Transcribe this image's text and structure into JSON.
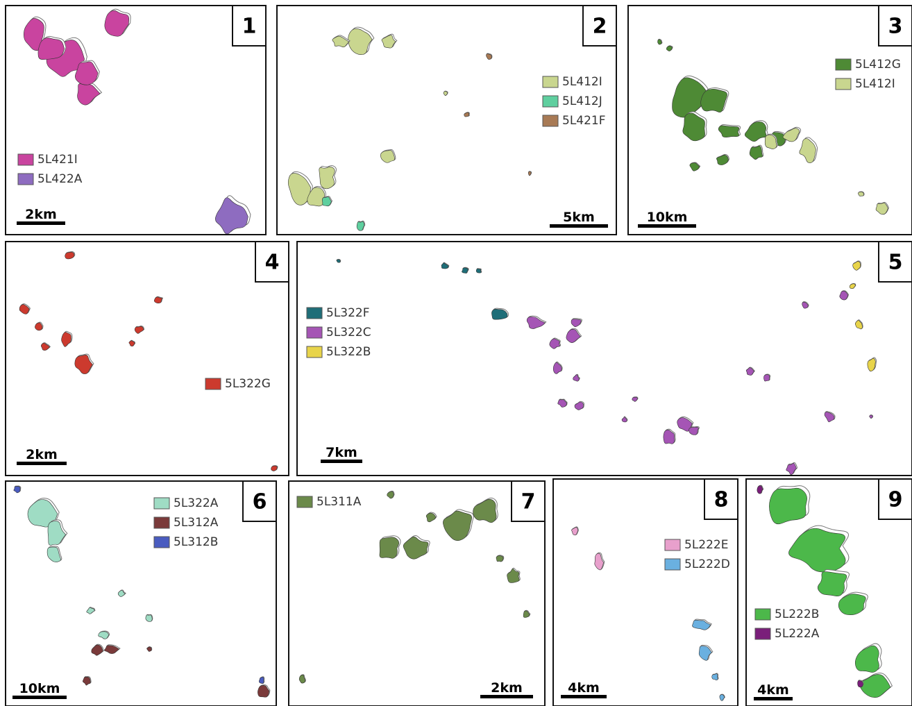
{
  "panels": [
    {
      "number": "1",
      "legend": [
        {
          "label": "5L421I",
          "color": "#c9449f"
        },
        {
          "label": "5L422A",
          "color": "#8e6cc0"
        }
      ],
      "scale": "2km"
    },
    {
      "number": "2",
      "legend": [
        {
          "label": "5L412I",
          "color": "#c9d68f"
        },
        {
          "label": "5L412J",
          "color": "#5fcf9f"
        },
        {
          "label": "5L421F",
          "color": "#a87a55"
        }
      ],
      "scale": "5km"
    },
    {
      "number": "3",
      "legend": [
        {
          "label": "5L412G",
          "color": "#4e8a35"
        },
        {
          "label": "5L412I",
          "color": "#c9d68f"
        }
      ],
      "scale": "10km"
    },
    {
      "number": "4",
      "legend": [
        {
          "label": "5L322G",
          "color": "#cc3a2e"
        }
      ],
      "scale": "2km"
    },
    {
      "number": "5",
      "legend": [
        {
          "label": "5L322F",
          "color": "#1f6e78"
        },
        {
          "label": "5L322C",
          "color": "#a555b5"
        },
        {
          "label": "5L322B",
          "color": "#e8d44a"
        }
      ],
      "scale": "7km"
    },
    {
      "number": "6",
      "legend": [
        {
          "label": "5L322A",
          "color": "#9fdcc4"
        },
        {
          "label": "5L312A",
          "color": "#7a3a3a"
        },
        {
          "label": "5L312B",
          "color": "#4a5cc0"
        }
      ],
      "scale": "10km"
    },
    {
      "number": "7",
      "legend": [
        {
          "label": "5L311A",
          "color": "#6b8a4a"
        }
      ],
      "scale": "2km"
    },
    {
      "number": "8",
      "legend": [
        {
          "label": "5L222E",
          "color": "#e8a0cc"
        },
        {
          "label": "5L222D",
          "color": "#6ab0e0"
        }
      ],
      "scale": "4km"
    },
    {
      "number": "9",
      "legend": [
        {
          "label": "5L222B",
          "color": "#4cb84a"
        },
        {
          "label": "5L222A",
          "color": "#7a1e7a"
        }
      ],
      "scale": "4km"
    }
  ]
}
